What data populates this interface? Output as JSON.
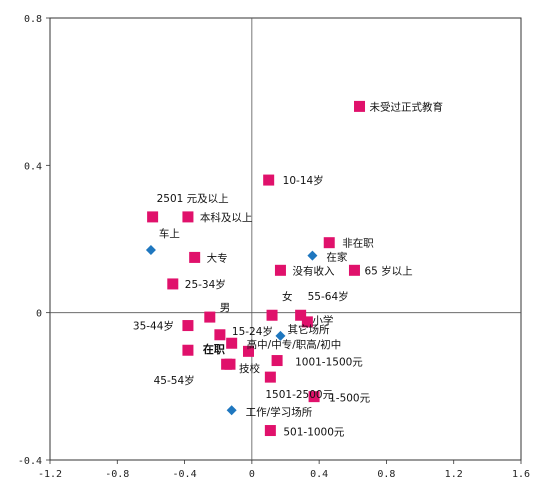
{
  "chart_data": {
    "type": "scatter",
    "xlim": [
      -1.2,
      1.6
    ],
    "ylim": [
      -0.4,
      0.8
    ],
    "x_ticks": [
      "-1.2",
      "-0.8",
      "-0.4",
      "0",
      "0.4",
      "0.8",
      "1.2",
      "1.6"
    ],
    "y_ticks": [
      "0.8",
      "0.4",
      "0",
      "-0.4"
    ],
    "grid": false,
    "colors": {
      "square": "#e0116b",
      "diamond": "#1f77bf"
    },
    "series": [
      {
        "marker": "square",
        "points": [
          {
            "label": "未受过正式教育",
            "x": 0.64,
            "y": 0.56
          },
          {
            "label": "10-14岁",
            "x": 0.1,
            "y": 0.36
          },
          {
            "label": "2501 元及以上",
            "x": -0.59,
            "y": 0.26
          },
          {
            "label": "本科及以上",
            "x": -0.38,
            "y": 0.26
          },
          {
            "label": "非在职",
            "x": 0.46,
            "y": 0.19
          },
          {
            "label": "大专",
            "x": -0.34,
            "y": 0.15
          },
          {
            "label": "没有收入",
            "x": 0.17,
            "y": 0.115
          },
          {
            "label": "65 岁以上",
            "x": 0.61,
            "y": 0.115
          },
          {
            "label": "25-34岁",
            "x": -0.47,
            "y": 0.078
          },
          {
            "label": "男",
            "x": -0.25,
            "y": -0.012
          },
          {
            "label": "15-24岁",
            "x": -0.19,
            "y": -0.06
          },
          {
            "label": "女",
            "x": 0.12,
            "y": -0.007
          },
          {
            "label": "55-64岁",
            "x": 0.29,
            "y": -0.007
          },
          {
            "label": "小学",
            "x": 0.33,
            "y": -0.025
          },
          {
            "label": "35-44岁",
            "x": -0.38,
            "y": -0.035
          },
          {
            "label": "高中/中专/职高/初中",
            "x": -0.12,
            "y": -0.083
          },
          {
            "label": "在职",
            "x": -0.38,
            "y": -0.102
          },
          {
            "label": "",
            "x": -0.02,
            "y": -0.105
          },
          {
            "label": "1001-1500元",
            "x": 0.15,
            "y": -0.13
          },
          {
            "label": "技校",
            "x": -0.13,
            "y": -0.14
          },
          {
            "label": "45-54岁",
            "x": -0.15,
            "y": -0.14
          },
          {
            "label": "1501-2500元",
            "x": 0.11,
            "y": -0.175
          },
          {
            "label": "1-500元",
            "x": 0.37,
            "y": -0.228
          },
          {
            "label": "501-1000元",
            "x": 0.11,
            "y": -0.32
          }
        ]
      },
      {
        "marker": "diamond",
        "points": [
          {
            "label": "车上",
            "x": -0.6,
            "y": 0.17
          },
          {
            "label": "在家",
            "x": 0.36,
            "y": 0.155
          },
          {
            "label": "其它场所",
            "x": 0.17,
            "y": -0.063
          },
          {
            "label": "工作/学习场所",
            "x": -0.12,
            "y": -0.265
          }
        ]
      }
    ]
  }
}
